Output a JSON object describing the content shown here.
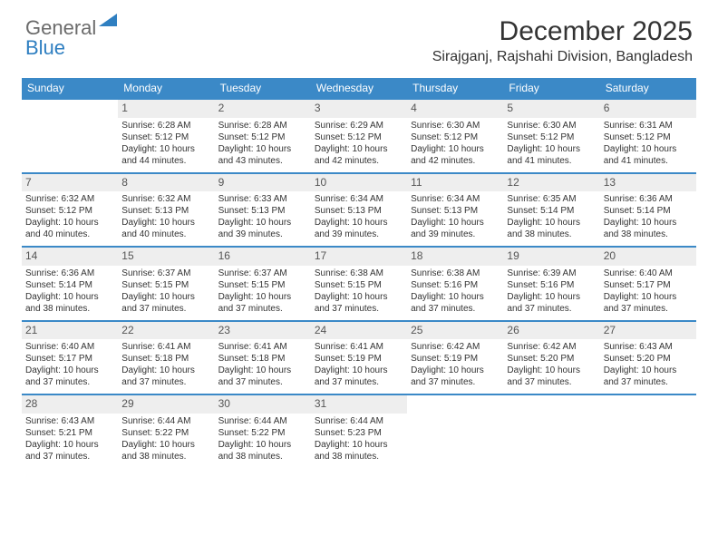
{
  "logo": {
    "general": "General",
    "blue": "Blue"
  },
  "title": "December 2025",
  "location": "Sirajganj, Rajshahi Division, Bangladesh",
  "colors": {
    "header_bg": "#3b89c7",
    "header_text": "#ffffff",
    "daynum_bg": "#eeeeee",
    "text": "#333333",
    "logo_gray": "#6b6b6b",
    "logo_blue": "#2f7fc1",
    "row_border": "#3b89c7"
  },
  "day_headers": [
    "Sunday",
    "Monday",
    "Tuesday",
    "Wednesday",
    "Thursday",
    "Friday",
    "Saturday"
  ],
  "weeks": [
    [
      null,
      {
        "n": "1",
        "sr": "6:28 AM",
        "ss": "5:12 PM",
        "dl1": "10 hours",
        "dl2": "and 44 minutes."
      },
      {
        "n": "2",
        "sr": "6:28 AM",
        "ss": "5:12 PM",
        "dl1": "10 hours",
        "dl2": "and 43 minutes."
      },
      {
        "n": "3",
        "sr": "6:29 AM",
        "ss": "5:12 PM",
        "dl1": "10 hours",
        "dl2": "and 42 minutes."
      },
      {
        "n": "4",
        "sr": "6:30 AM",
        "ss": "5:12 PM",
        "dl1": "10 hours",
        "dl2": "and 42 minutes."
      },
      {
        "n": "5",
        "sr": "6:30 AM",
        "ss": "5:12 PM",
        "dl1": "10 hours",
        "dl2": "and 41 minutes."
      },
      {
        "n": "6",
        "sr": "6:31 AM",
        "ss": "5:12 PM",
        "dl1": "10 hours",
        "dl2": "and 41 minutes."
      }
    ],
    [
      {
        "n": "7",
        "sr": "6:32 AM",
        "ss": "5:12 PM",
        "dl1": "10 hours",
        "dl2": "and 40 minutes."
      },
      {
        "n": "8",
        "sr": "6:32 AM",
        "ss": "5:13 PM",
        "dl1": "10 hours",
        "dl2": "and 40 minutes."
      },
      {
        "n": "9",
        "sr": "6:33 AM",
        "ss": "5:13 PM",
        "dl1": "10 hours",
        "dl2": "and 39 minutes."
      },
      {
        "n": "10",
        "sr": "6:34 AM",
        "ss": "5:13 PM",
        "dl1": "10 hours",
        "dl2": "and 39 minutes."
      },
      {
        "n": "11",
        "sr": "6:34 AM",
        "ss": "5:13 PM",
        "dl1": "10 hours",
        "dl2": "and 39 minutes."
      },
      {
        "n": "12",
        "sr": "6:35 AM",
        "ss": "5:14 PM",
        "dl1": "10 hours",
        "dl2": "and 38 minutes."
      },
      {
        "n": "13",
        "sr": "6:36 AM",
        "ss": "5:14 PM",
        "dl1": "10 hours",
        "dl2": "and 38 minutes."
      }
    ],
    [
      {
        "n": "14",
        "sr": "6:36 AM",
        "ss": "5:14 PM",
        "dl1": "10 hours",
        "dl2": "and 38 minutes."
      },
      {
        "n": "15",
        "sr": "6:37 AM",
        "ss": "5:15 PM",
        "dl1": "10 hours",
        "dl2": "and 37 minutes."
      },
      {
        "n": "16",
        "sr": "6:37 AM",
        "ss": "5:15 PM",
        "dl1": "10 hours",
        "dl2": "and 37 minutes."
      },
      {
        "n": "17",
        "sr": "6:38 AM",
        "ss": "5:15 PM",
        "dl1": "10 hours",
        "dl2": "and 37 minutes."
      },
      {
        "n": "18",
        "sr": "6:38 AM",
        "ss": "5:16 PM",
        "dl1": "10 hours",
        "dl2": "and 37 minutes."
      },
      {
        "n": "19",
        "sr": "6:39 AM",
        "ss": "5:16 PM",
        "dl1": "10 hours",
        "dl2": "and 37 minutes."
      },
      {
        "n": "20",
        "sr": "6:40 AM",
        "ss": "5:17 PM",
        "dl1": "10 hours",
        "dl2": "and 37 minutes."
      }
    ],
    [
      {
        "n": "21",
        "sr": "6:40 AM",
        "ss": "5:17 PM",
        "dl1": "10 hours",
        "dl2": "and 37 minutes."
      },
      {
        "n": "22",
        "sr": "6:41 AM",
        "ss": "5:18 PM",
        "dl1": "10 hours",
        "dl2": "and 37 minutes."
      },
      {
        "n": "23",
        "sr": "6:41 AM",
        "ss": "5:18 PM",
        "dl1": "10 hours",
        "dl2": "and 37 minutes."
      },
      {
        "n": "24",
        "sr": "6:41 AM",
        "ss": "5:19 PM",
        "dl1": "10 hours",
        "dl2": "and 37 minutes."
      },
      {
        "n": "25",
        "sr": "6:42 AM",
        "ss": "5:19 PM",
        "dl1": "10 hours",
        "dl2": "and 37 minutes."
      },
      {
        "n": "26",
        "sr": "6:42 AM",
        "ss": "5:20 PM",
        "dl1": "10 hours",
        "dl2": "and 37 minutes."
      },
      {
        "n": "27",
        "sr": "6:43 AM",
        "ss": "5:20 PM",
        "dl1": "10 hours",
        "dl2": "and 37 minutes."
      }
    ],
    [
      {
        "n": "28",
        "sr": "6:43 AM",
        "ss": "5:21 PM",
        "dl1": "10 hours",
        "dl2": "and 37 minutes."
      },
      {
        "n": "29",
        "sr": "6:44 AM",
        "ss": "5:22 PM",
        "dl1": "10 hours",
        "dl2": "and 38 minutes."
      },
      {
        "n": "30",
        "sr": "6:44 AM",
        "ss": "5:22 PM",
        "dl1": "10 hours",
        "dl2": "and 38 minutes."
      },
      {
        "n": "31",
        "sr": "6:44 AM",
        "ss": "5:23 PM",
        "dl1": "10 hours",
        "dl2": "and 38 minutes."
      },
      null,
      null,
      null
    ]
  ],
  "labels": {
    "sunrise": "Sunrise: ",
    "sunset": "Sunset: ",
    "daylight": "Daylight: "
  }
}
